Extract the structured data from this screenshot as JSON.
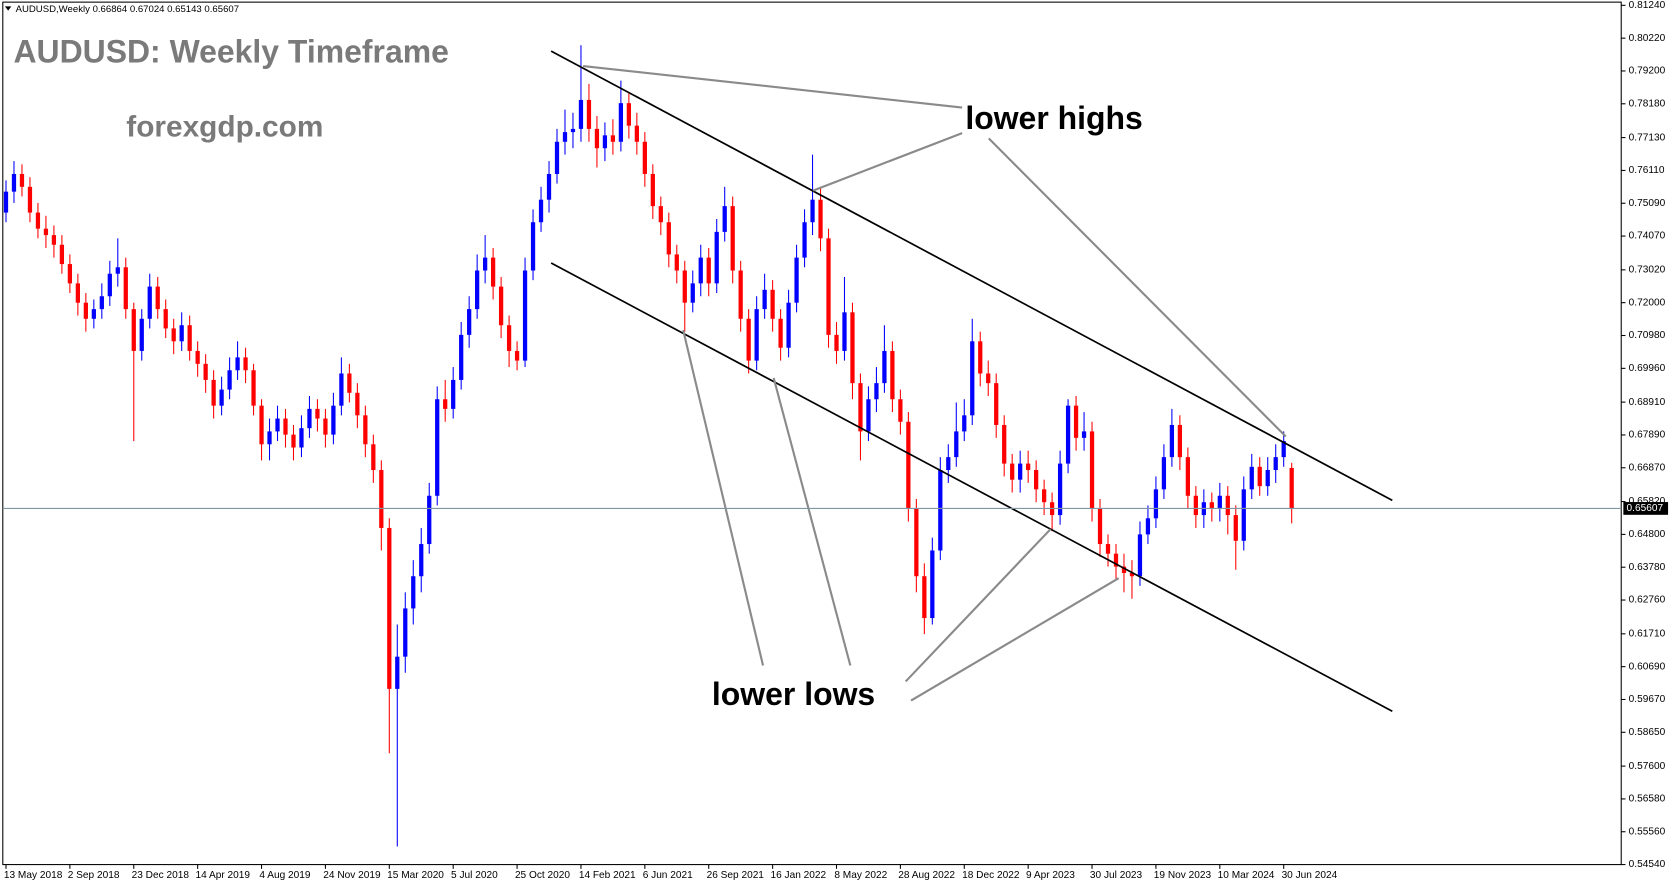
{
  "chart_data": {
    "type": "candlestick",
    "header": "AUDUSD,Weekly  0.66864 0.67024 0.65143 0.65607",
    "title": "AUDUSD: Weekly Timeframe",
    "watermark": "forexgdp.com",
    "annotations": [
      "lower highs",
      "lower lows"
    ],
    "categories": [
      "13 May 2018",
      null,
      null,
      null,
      null,
      null,
      null,
      null,
      "2 Sep 2018",
      null,
      null,
      null,
      null,
      null,
      null,
      null,
      "23 Dec 2018",
      null,
      null,
      null,
      null,
      null,
      null,
      null,
      "14 Apr 2019",
      null,
      null,
      null,
      null,
      null,
      null,
      null,
      "4 Aug 2019",
      null,
      null,
      null,
      null,
      null,
      null,
      null,
      "24 Nov 2019",
      null,
      null,
      null,
      null,
      null,
      null,
      null,
      "15 Mar 2020",
      null,
      null,
      null,
      null,
      null,
      null,
      null,
      "5 Jul 2020",
      null,
      null,
      null,
      null,
      null,
      null,
      null,
      "25 Oct 2020",
      null,
      null,
      null,
      null,
      null,
      null,
      null,
      "14 Feb 2021",
      null,
      null,
      null,
      null,
      null,
      null,
      null,
      "6 Jun 2021",
      null,
      null,
      null,
      null,
      null,
      null,
      null,
      "26 Sep 2021",
      null,
      null,
      null,
      null,
      null,
      null,
      null,
      "16 Jan 2022",
      null,
      null,
      null,
      null,
      null,
      null,
      null,
      "8 May 2022",
      null,
      null,
      null,
      null,
      null,
      null,
      null,
      "28 Aug 2022",
      null,
      null,
      null,
      null,
      null,
      null,
      null,
      "18 Dec 2022",
      null,
      null,
      null,
      null,
      null,
      null,
      null,
      "9 Apr 2023",
      null,
      null,
      null,
      null,
      null,
      null,
      null,
      "30 Jul 2023",
      null,
      null,
      null,
      null,
      null,
      null,
      null,
      "19 Nov 2023",
      null,
      null,
      null,
      null,
      null,
      null,
      null,
      "10 Mar 2024",
      null,
      null,
      null,
      null,
      null,
      null,
      null,
      "30 Jun 2024",
      null
    ],
    "open": [
      0.748,
      0.7545,
      0.76,
      0.756,
      0.748,
      0.743,
      0.741,
      0.738,
      0.732,
      0.726,
      0.72,
      0.715,
      0.718,
      0.722,
      0.729,
      0.731,
      0.718,
      0.705,
      0.715,
      0.725,
      0.718,
      0.712,
      0.708,
      0.713,
      0.705,
      0.701,
      0.696,
      0.688,
      0.693,
      0.699,
      0.703,
      0.699,
      0.688,
      0.676,
      0.68,
      0.684,
      0.679,
      0.675,
      0.681,
      0.687,
      0.684,
      0.679,
      0.688,
      0.698,
      0.692,
      0.685,
      0.676,
      0.668,
      0.65,
      0.6,
      0.61,
      0.625,
      0.635,
      0.645,
      0.66,
      0.69,
      0.687,
      0.696,
      0.71,
      0.718,
      0.73,
      0.734,
      0.725,
      0.713,
      0.705,
      0.702,
      0.73,
      0.745,
      0.752,
      0.76,
      0.77,
      0.773,
      0.774,
      0.783,
      0.774,
      0.768,
      0.772,
      0.77,
      0.782,
      0.775,
      0.77,
      0.76,
      0.75,
      0.745,
      0.735,
      0.73,
      0.72,
      0.726,
      0.734,
      0.726,
      0.742,
      0.75,
      0.73,
      0.715,
      0.702,
      0.718,
      0.724,
      0.715,
      0.706,
      0.72,
      0.734,
      0.745,
      0.752,
      0.74,
      0.71,
      0.705,
      0.717,
      0.695,
      0.68,
      0.69,
      0.695,
      0.705,
      0.69,
      0.683,
      0.656,
      0.635,
      0.622,
      0.643,
      0.668,
      0.672,
      0.68,
      0.685,
      0.708,
      0.698,
      0.695,
      0.682,
      0.67,
      0.665,
      0.67,
      0.668,
      0.662,
      0.658,
      0.654,
      0.67,
      0.688,
      0.678,
      0.68,
      0.656,
      0.645,
      0.642,
      0.638,
      0.636,
      0.635,
      0.648,
      0.653,
      0.662,
      0.672,
      0.682,
      0.672,
      0.66,
      0.654,
      0.658,
      0.656,
      0.66,
      0.654,
      0.646,
      0.662,
      0.669,
      0.663,
      0.668,
      0.672,
      0.66864
    ],
    "high": [
      0.758,
      0.764,
      0.763,
      0.759,
      0.751,
      0.747,
      0.744,
      0.741,
      0.735,
      0.729,
      0.723,
      0.721,
      0.726,
      0.733,
      0.74,
      0.734,
      0.72,
      0.718,
      0.729,
      0.728,
      0.721,
      0.715,
      0.717,
      0.716,
      0.708,
      0.704,
      0.699,
      0.697,
      0.703,
      0.708,
      0.706,
      0.701,
      0.69,
      0.684,
      0.688,
      0.687,
      0.682,
      0.685,
      0.691,
      0.69,
      0.687,
      0.692,
      0.703,
      0.701,
      0.695,
      0.688,
      0.679,
      0.671,
      0.653,
      0.62,
      0.63,
      0.64,
      0.65,
      0.664,
      0.694,
      0.696,
      0.7,
      0.714,
      0.722,
      0.735,
      0.741,
      0.737,
      0.728,
      0.716,
      0.708,
      0.734,
      0.749,
      0.756,
      0.764,
      0.774,
      0.78,
      0.779,
      0.8,
      0.788,
      0.778,
      0.776,
      0.777,
      0.789,
      0.785,
      0.779,
      0.773,
      0.763,
      0.753,
      0.748,
      0.738,
      0.733,
      0.73,
      0.738,
      0.737,
      0.746,
      0.756,
      0.753,
      0.733,
      0.718,
      0.722,
      0.729,
      0.727,
      0.718,
      0.724,
      0.738,
      0.749,
      0.766,
      0.756,
      0.743,
      0.714,
      0.728,
      0.72,
      0.698,
      0.694,
      0.7,
      0.713,
      0.708,
      0.693,
      0.686,
      0.659,
      0.639,
      0.647,
      0.672,
      0.676,
      0.689,
      0.69,
      0.715,
      0.711,
      0.702,
      0.698,
      0.685,
      0.673,
      0.674,
      0.674,
      0.671,
      0.665,
      0.661,
      0.674,
      0.69,
      0.691,
      0.686,
      0.683,
      0.659,
      0.648,
      0.645,
      0.642,
      0.64,
      0.652,
      0.657,
      0.666,
      0.676,
      0.687,
      0.685,
      0.675,
      0.663,
      0.662,
      0.661,
      0.664,
      0.663,
      0.657,
      0.666,
      0.673,
      0.672,
      0.672,
      0.676,
      0.68,
      0.67024
    ],
    "low": [
      0.745,
      0.751,
      0.753,
      0.745,
      0.74,
      0.737,
      0.734,
      0.729,
      0.723,
      0.716,
      0.711,
      0.712,
      0.715,
      0.719,
      0.725,
      0.715,
      0.677,
      0.702,
      0.712,
      0.715,
      0.709,
      0.704,
      0.705,
      0.702,
      0.697,
      0.692,
      0.684,
      0.685,
      0.69,
      0.696,
      0.695,
      0.685,
      0.671,
      0.671,
      0.677,
      0.675,
      0.671,
      0.672,
      0.678,
      0.68,
      0.675,
      0.676,
      0.685,
      0.689,
      0.681,
      0.672,
      0.664,
      0.643,
      0.58,
      0.551,
      0.605,
      0.62,
      0.63,
      0.642,
      0.657,
      0.683,
      0.684,
      0.693,
      0.706,
      0.715,
      0.726,
      0.721,
      0.709,
      0.7,
      0.699,
      0.7,
      0.727,
      0.742,
      0.748,
      0.757,
      0.766,
      0.768,
      0.77,
      0.77,
      0.762,
      0.764,
      0.766,
      0.767,
      0.771,
      0.766,
      0.756,
      0.746,
      0.741,
      0.731,
      0.726,
      0.711,
      0.717,
      0.722,
      0.722,
      0.723,
      0.739,
      0.726,
      0.711,
      0.698,
      0.699,
      0.715,
      0.711,
      0.702,
      0.703,
      0.717,
      0.731,
      0.741,
      0.736,
      0.706,
      0.701,
      0.702,
      0.69,
      0.671,
      0.677,
      0.686,
      0.692,
      0.686,
      0.679,
      0.652,
      0.63,
      0.617,
      0.62,
      0.64,
      0.664,
      0.669,
      0.677,
      0.682,
      0.694,
      0.691,
      0.678,
      0.666,
      0.661,
      0.661,
      0.664,
      0.658,
      0.654,
      0.649,
      0.651,
      0.667,
      0.674,
      0.674,
      0.652,
      0.641,
      0.638,
      0.634,
      0.63,
      0.628,
      0.632,
      0.645,
      0.65,
      0.659,
      0.669,
      0.668,
      0.656,
      0.65,
      0.65,
      0.652,
      0.652,
      0.648,
      0.637,
      0.643,
      0.659,
      0.66,
      0.66,
      0.664,
      0.669,
      0.65143
    ],
    "close": [
      0.7545,
      0.76,
      0.756,
      0.748,
      0.743,
      0.741,
      0.738,
      0.732,
      0.726,
      0.72,
      0.715,
      0.718,
      0.722,
      0.729,
      0.731,
      0.718,
      0.705,
      0.715,
      0.725,
      0.718,
      0.712,
      0.708,
      0.713,
      0.705,
      0.701,
      0.696,
      0.688,
      0.693,
      0.699,
      0.703,
      0.699,
      0.688,
      0.676,
      0.68,
      0.684,
      0.679,
      0.675,
      0.681,
      0.687,
      0.684,
      0.679,
      0.688,
      0.698,
      0.692,
      0.685,
      0.676,
      0.668,
      0.65,
      0.6,
      0.61,
      0.625,
      0.635,
      0.645,
      0.66,
      0.69,
      0.687,
      0.696,
      0.71,
      0.718,
      0.73,
      0.734,
      0.725,
      0.713,
      0.705,
      0.702,
      0.73,
      0.745,
      0.752,
      0.76,
      0.77,
      0.773,
      0.774,
      0.783,
      0.774,
      0.768,
      0.772,
      0.77,
      0.782,
      0.775,
      0.77,
      0.76,
      0.75,
      0.745,
      0.735,
      0.73,
      0.72,
      0.726,
      0.734,
      0.726,
      0.742,
      0.75,
      0.73,
      0.715,
      0.702,
      0.718,
      0.724,
      0.715,
      0.706,
      0.72,
      0.734,
      0.745,
      0.752,
      0.74,
      0.71,
      0.705,
      0.717,
      0.695,
      0.68,
      0.69,
      0.695,
      0.705,
      0.69,
      0.683,
      0.656,
      0.635,
      0.622,
      0.643,
      0.668,
      0.672,
      0.68,
      0.685,
      0.708,
      0.698,
      0.695,
      0.682,
      0.67,
      0.665,
      0.67,
      0.668,
      0.662,
      0.658,
      0.654,
      0.67,
      0.688,
      0.678,
      0.68,
      0.656,
      0.645,
      0.642,
      0.638,
      0.636,
      0.635,
      0.648,
      0.653,
      0.662,
      0.672,
      0.682,
      0.672,
      0.66,
      0.654,
      0.658,
      0.656,
      0.66,
      0.654,
      0.646,
      0.662,
      0.669,
      0.663,
      0.668,
      0.672,
      0.677,
      0.65607
    ],
    "up_color": "#0000ff",
    "down_color": "#ff0000",
    "ylim": [
      0.5454,
      0.8124
    ],
    "yticks": [
      {
        "value": 0.8124,
        "label": "0.81240"
      },
      {
        "value": 0.8022,
        "label": "0.80220"
      },
      {
        "value": 0.792,
        "label": "0.79200"
      },
      {
        "value": 0.7818,
        "label": "0.78180"
      },
      {
        "value": 0.7713,
        "label": "0.77130"
      },
      {
        "value": 0.7611,
        "label": "0.76110"
      },
      {
        "value": 0.7509,
        "label": "0.75090"
      },
      {
        "value": 0.7407,
        "label": "0.74070"
      },
      {
        "value": 0.7302,
        "label": "0.73020"
      },
      {
        "value": 0.72,
        "label": "0.72000"
      },
      {
        "value": 0.7098,
        "label": "0.70980"
      },
      {
        "value": 0.6996,
        "label": "0.69960"
      },
      {
        "value": 0.6891,
        "label": "0.68910"
      },
      {
        "value": 0.6789,
        "label": "0.67890"
      },
      {
        "value": 0.6687,
        "label": "0.66870"
      },
      {
        "value": 0.6582,
        "label": "0.65820"
      },
      {
        "value": 0.648,
        "label": "0.64800"
      },
      {
        "value": 0.6378,
        "label": "0.63780"
      },
      {
        "value": 0.6276,
        "label": "0.62760"
      },
      {
        "value": 0.6171,
        "label": "0.61710"
      },
      {
        "value": 0.6069,
        "label": "0.60690"
      },
      {
        "value": 0.5967,
        "label": "0.59670"
      },
      {
        "value": 0.5865,
        "label": "0.58650"
      },
      {
        "value": 0.576,
        "label": "0.57600"
      },
      {
        "value": 0.5658,
        "label": "0.56580"
      },
      {
        "value": 0.5556,
        "label": "0.55560"
      },
      {
        "value": 0.5454,
        "label": "0.54540"
      }
    ],
    "current_price": 0.65607
  }
}
